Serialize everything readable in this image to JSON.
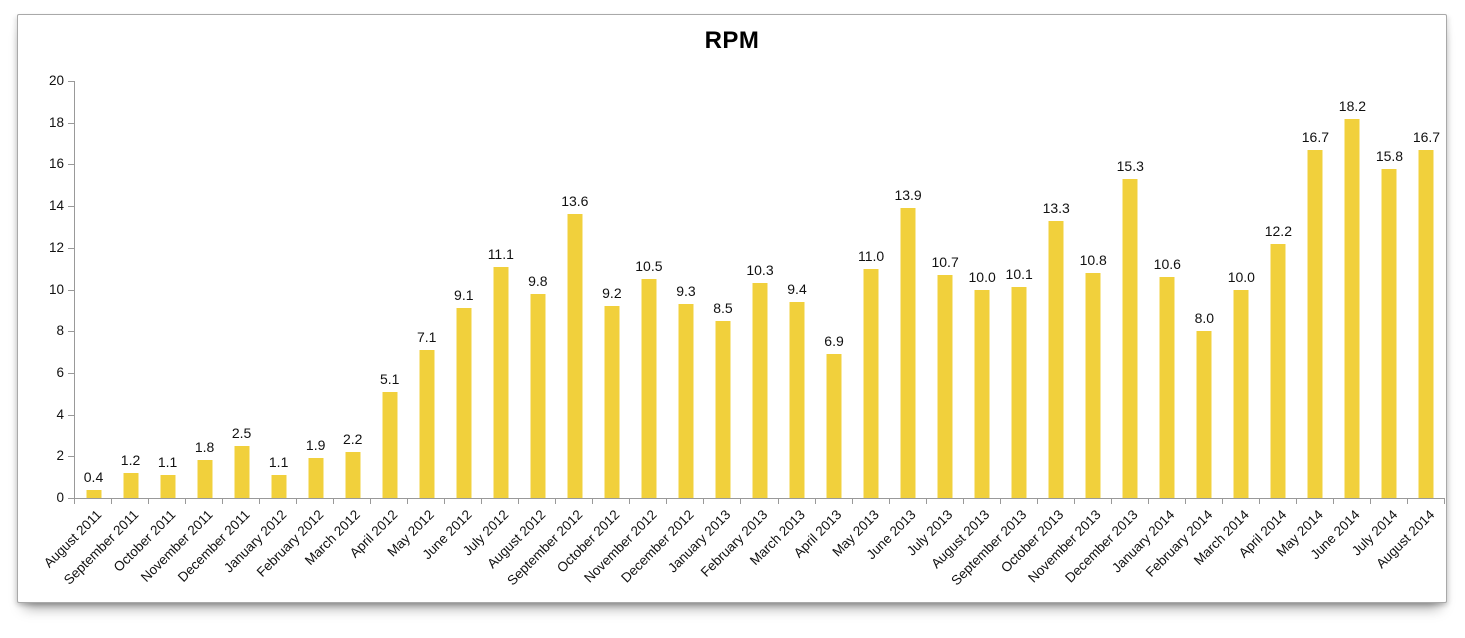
{
  "frame": {
    "background": "#ffffff",
    "border_color": "#a9a9a9"
  },
  "chart_data": {
    "type": "bar",
    "title": "RPM",
    "xlabel": "",
    "ylabel": "",
    "ylim": [
      0,
      20
    ],
    "yticks": [
      0,
      2,
      4,
      6,
      8,
      10,
      12,
      14,
      16,
      18,
      20
    ],
    "grid": false,
    "legend_position": "none",
    "value_labels": true,
    "value_label_decimals": 1,
    "bar_color": "#F1D03C",
    "axis_color": "#999999",
    "label_color": "#111111",
    "categories": [
      "August 2011",
      "September 2011",
      "October 2011",
      "November 2011",
      "December 2011",
      "January 2012",
      "February 2012",
      "March 2012",
      "April 2012",
      "May 2012",
      "June 2012",
      "July 2012",
      "August 2012",
      "September 2012",
      "October 2012",
      "November 2012",
      "December 2012",
      "January 2013",
      "February 2013",
      "March 2013",
      "April 2013",
      "May 2013",
      "June 2013",
      "July 2013",
      "August 2013",
      "September 2013",
      "October 2013",
      "November 2013",
      "December 2013",
      "January 2014",
      "February 2014",
      "March 2014",
      "April 2014",
      "May 2014",
      "June 2014",
      "July 2014",
      "August 2014"
    ],
    "values": [
      0.4,
      1.2,
      1.1,
      1.8,
      2.5,
      1.1,
      1.9,
      2.2,
      5.1,
      7.1,
      9.1,
      11.1,
      9.8,
      13.6,
      9.2,
      10.5,
      9.3,
      8.5,
      10.3,
      9.4,
      6.9,
      11.0,
      13.9,
      10.7,
      10.0,
      10.1,
      13.3,
      10.8,
      15.3,
      10.6,
      8.0,
      10.0,
      12.2,
      16.7,
      18.2,
      15.8,
      16.7
    ]
  }
}
